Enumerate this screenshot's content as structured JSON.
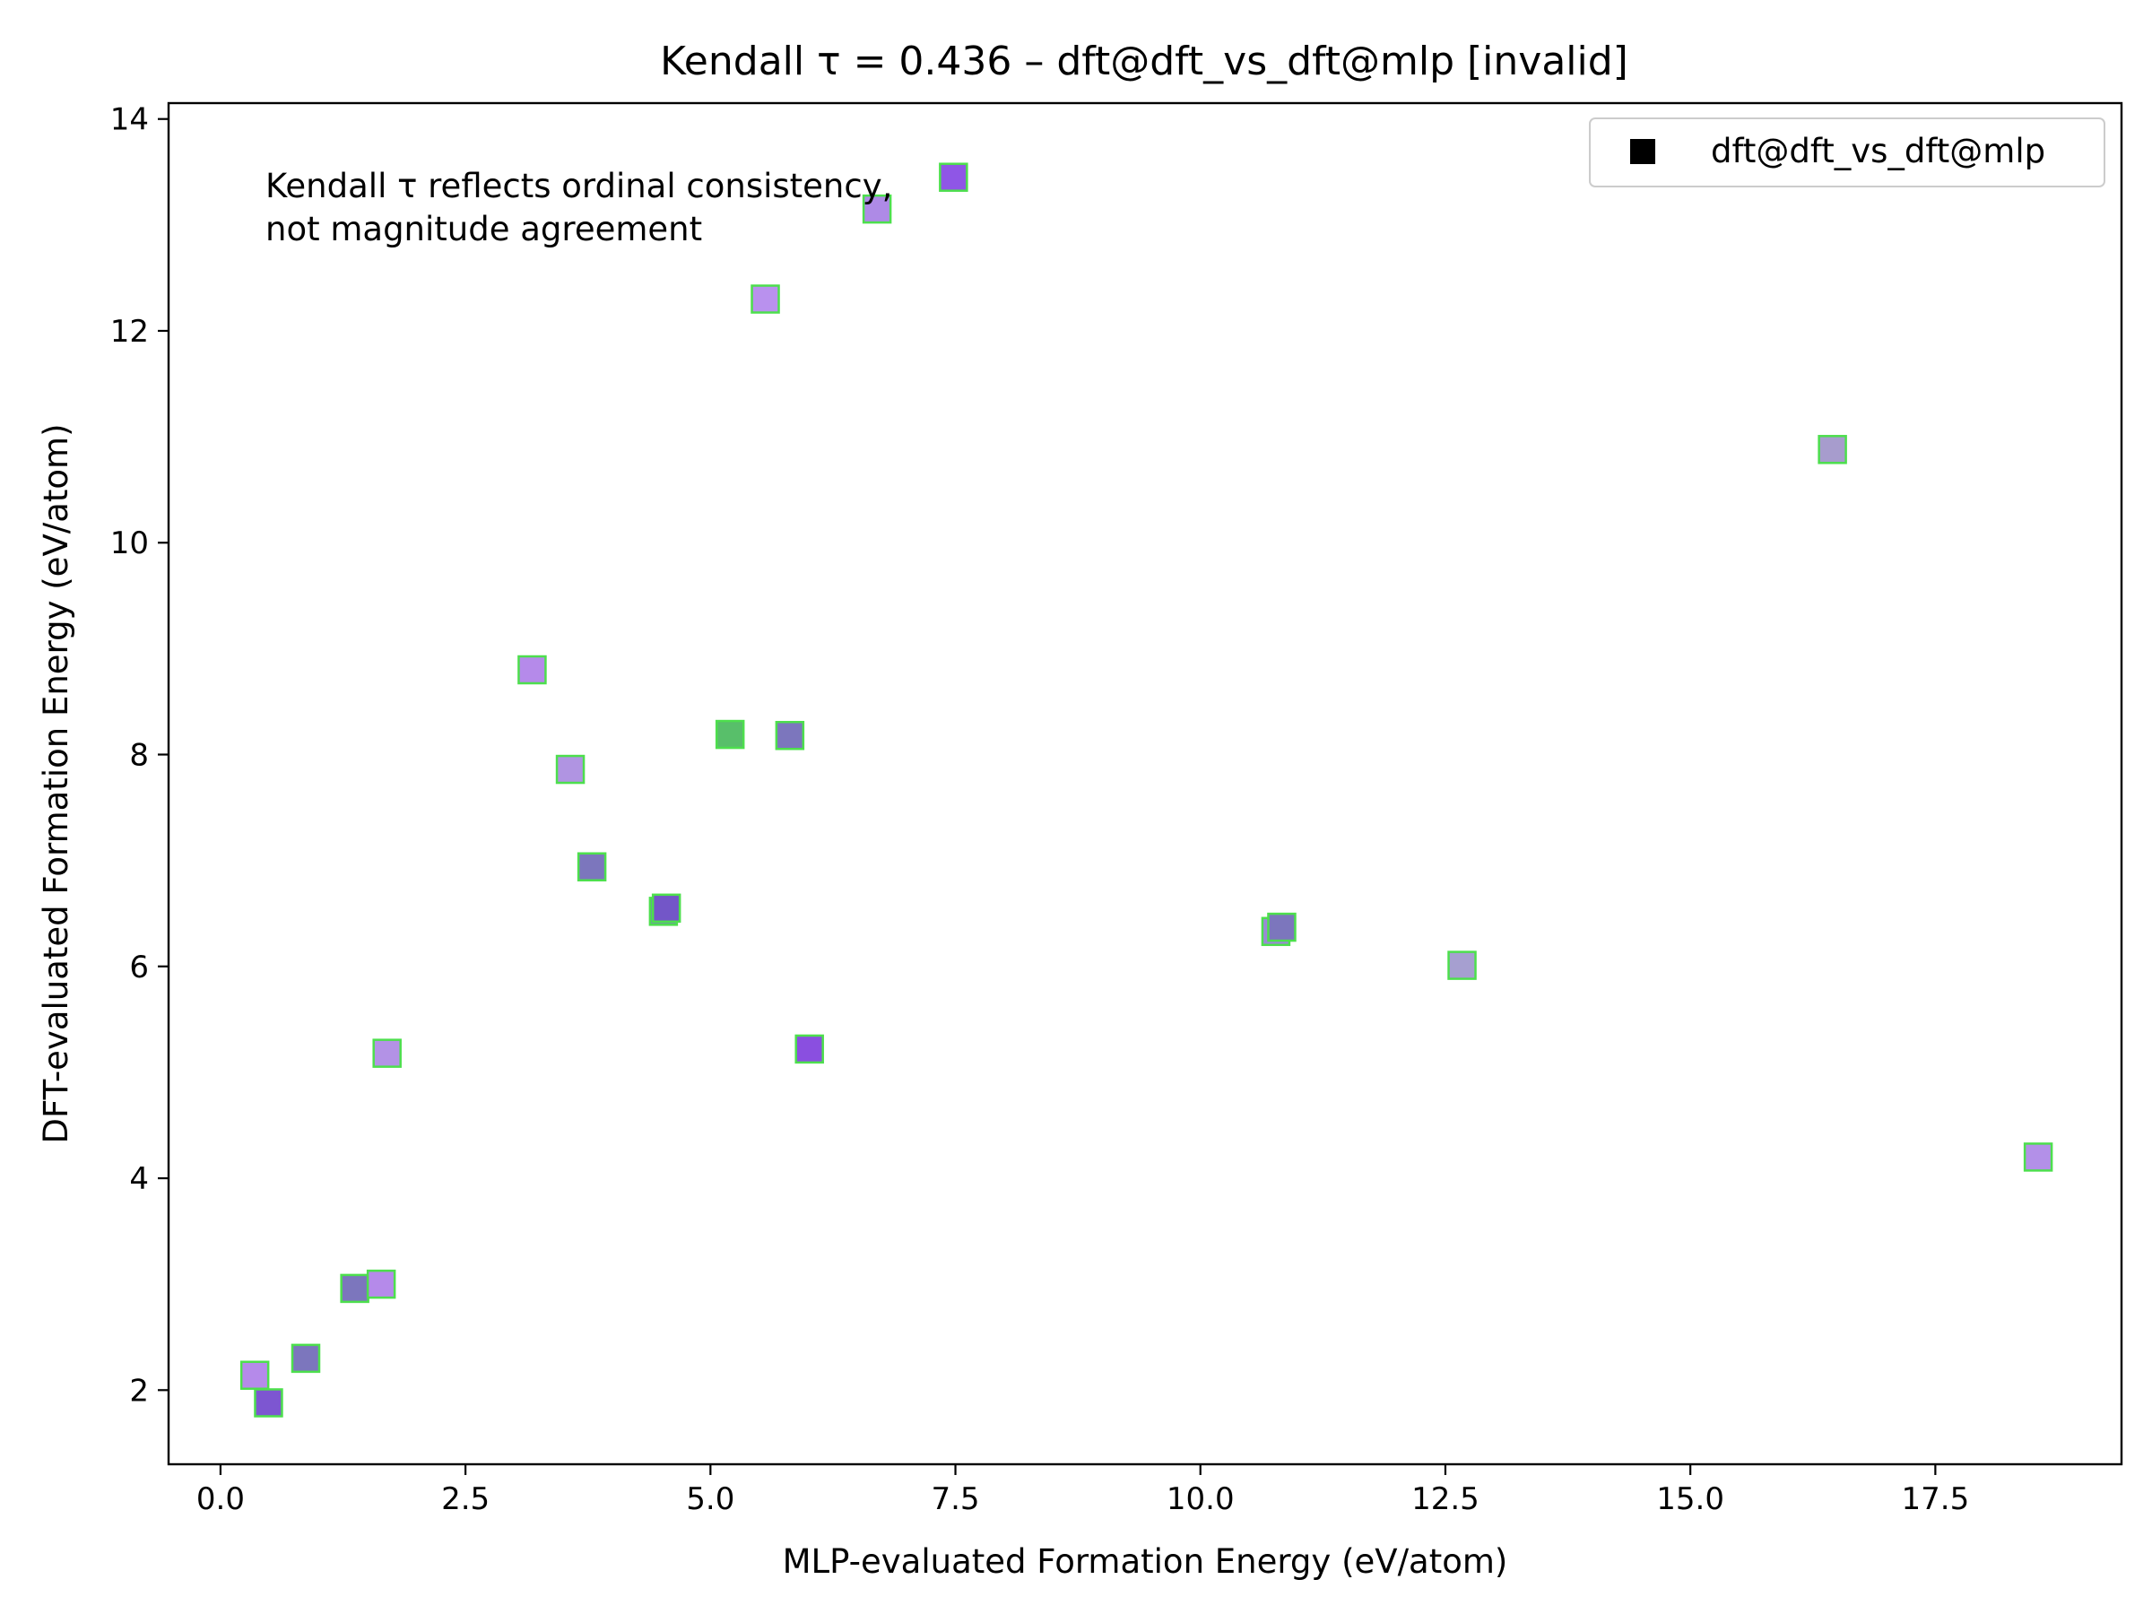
{
  "chart_data": {
    "type": "scatter",
    "title": "Kendall τ = 0.436 – dft@dft_vs_dft@mlp [invalid]",
    "xlabel": "MLP-evaluated Formation Energy (eV/atom)",
    "ylabel": "DFT-evaluated Formation Energy (eV/atom)",
    "xlim": [
      -0.53,
      19.4
    ],
    "ylim": [
      1.3,
      14.15
    ],
    "xticks": [
      0.0,
      2.5,
      5.0,
      7.5,
      10.0,
      12.5,
      15.0,
      17.5
    ],
    "xtick_labels": [
      "0.0",
      "2.5",
      "5.0",
      "7.5",
      "10.0",
      "12.5",
      "15.0",
      "17.5"
    ],
    "yticks": [
      2,
      4,
      6,
      8,
      10,
      12,
      14
    ],
    "ytick_labels": [
      "2",
      "4",
      "6",
      "8",
      "10",
      "12",
      "14"
    ],
    "grid": false,
    "legend": {
      "position": "top-right",
      "entries": [
        "dft@dft_vs_dft@mlp"
      ]
    },
    "annotation": [
      "Kendall τ reflects ordinal consistency,",
      "not magnitude agreement"
    ],
    "marker": "square",
    "edge_color": "#4ddf4d",
    "series": [
      {
        "name": "dft@dft_vs_dft@mlp",
        "points": [
          {
            "x": 7.48,
            "y": 13.45,
            "color": "#8f56e6"
          },
          {
            "x": 6.7,
            "y": 13.15,
            "color": "#ae8ae6"
          },
          {
            "x": 5.56,
            "y": 12.3,
            "color": "#b991ee"
          },
          {
            "x": 16.45,
            "y": 10.88,
            "color": "#a79ccd"
          },
          {
            "x": 3.18,
            "y": 8.8,
            "color": "#b58aea"
          },
          {
            "x": 5.2,
            "y": 8.19,
            "color": "#58bf6a"
          },
          {
            "x": 5.81,
            "y": 8.18,
            "color": "#7c76bd"
          },
          {
            "x": 3.57,
            "y": 7.86,
            "color": "#b094e2"
          },
          {
            "x": 3.79,
            "y": 6.94,
            "color": "#7c76bd"
          },
          {
            "x": 4.52,
            "y": 6.52,
            "color": "#6a9e9a"
          },
          {
            "x": 4.55,
            "y": 6.55,
            "color": "#7356c8"
          },
          {
            "x": 10.77,
            "y": 6.33,
            "color": "#9a8ad5"
          },
          {
            "x": 10.83,
            "y": 6.37,
            "color": "#7c76bd"
          },
          {
            "x": 12.67,
            "y": 6.01,
            "color": "#a69fd0"
          },
          {
            "x": 6.01,
            "y": 5.22,
            "color": "#8a4fe0"
          },
          {
            "x": 1.7,
            "y": 5.18,
            "color": "#b392e6"
          },
          {
            "x": 18.55,
            "y": 4.2,
            "color": "#b390e8"
          },
          {
            "x": 1.37,
            "y": 2.96,
            "color": "#7c76bd"
          },
          {
            "x": 1.64,
            "y": 3.0,
            "color": "#b58aea"
          },
          {
            "x": 0.87,
            "y": 2.3,
            "color": "#7c76bd"
          },
          {
            "x": 0.35,
            "y": 2.14,
            "color": "#b58aea"
          },
          {
            "x": 0.49,
            "y": 1.88,
            "color": "#7d56d1"
          }
        ]
      }
    ]
  }
}
